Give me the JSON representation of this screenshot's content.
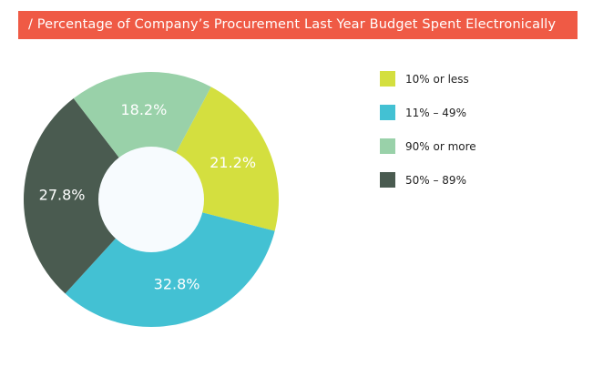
{
  "chart_data": {
    "type": "pie",
    "donut": true,
    "title": "/ Percentage of Company’s Procurement Last Year Budget Spent Electronically",
    "title_color": "#ef5a45",
    "slices": [
      {
        "label": "10% or less",
        "value": 21.2,
        "display": "21.2%",
        "color": "#d4df3f"
      },
      {
        "label": "11% – 49%",
        "value": 32.8,
        "display": "32.8%",
        "color": "#43c1d3"
      },
      {
        "label": "50% – 89%",
        "value": 27.8,
        "display": "27.8%",
        "color": "#4a5b50"
      },
      {
        "label": "90% or more",
        "value": 18.2,
        "display": "18.2%",
        "color": "#99d1a9"
      }
    ],
    "legend": [
      {
        "label": "10% or less",
        "color": "#d4df3f"
      },
      {
        "label": "11% – 49%",
        "color": "#43c1d3"
      },
      {
        "label": "90% or more",
        "color": "#99d1a9"
      },
      {
        "label": "50% – 89%",
        "color": "#4a5b50"
      }
    ],
    "legend_position": "right",
    "hole_color": "#f7fbfe"
  }
}
